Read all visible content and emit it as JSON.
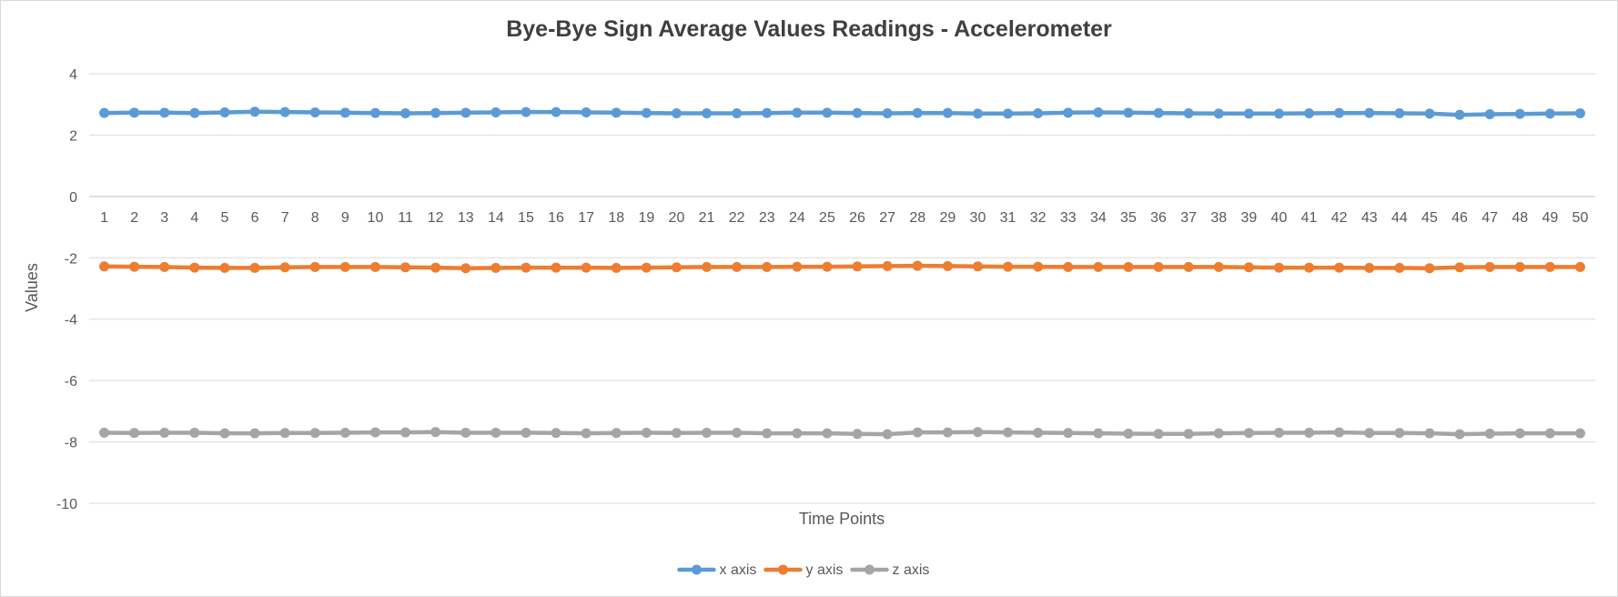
{
  "chart_data": {
    "type": "line",
    "title": "Bye-Bye Sign Average Values Readings - Accelerometer",
    "xlabel": "Time Points",
    "ylabel": "Values",
    "ylim": [
      -10,
      4
    ],
    "yticks": [
      4,
      2,
      0,
      -2,
      -4,
      -6,
      -8,
      -10
    ],
    "grid": true,
    "legend_position": "bottom",
    "categories": [
      "1",
      "2",
      "3",
      "4",
      "5",
      "6",
      "7",
      "8",
      "9",
      "10",
      "11",
      "12",
      "13",
      "14",
      "15",
      "16",
      "17",
      "18",
      "19",
      "20",
      "21",
      "22",
      "23",
      "24",
      "25",
      "26",
      "27",
      "28",
      "29",
      "30",
      "31",
      "32",
      "33",
      "34",
      "35",
      "36",
      "37",
      "38",
      "39",
      "40",
      "41",
      "42",
      "43",
      "44",
      "45",
      "46",
      "47",
      "48",
      "49",
      "50"
    ],
    "series": [
      {
        "name": "x axis",
        "color": "#5b9bd5",
        "values": [
          2.72,
          2.73,
          2.73,
          2.72,
          2.74,
          2.76,
          2.75,
          2.74,
          2.73,
          2.72,
          2.71,
          2.72,
          2.73,
          2.74,
          2.75,
          2.75,
          2.74,
          2.73,
          2.72,
          2.71,
          2.71,
          2.71,
          2.72,
          2.73,
          2.73,
          2.72,
          2.71,
          2.72,
          2.72,
          2.7,
          2.7,
          2.71,
          2.73,
          2.74,
          2.73,
          2.72,
          2.71,
          2.7,
          2.7,
          2.7,
          2.71,
          2.72,
          2.72,
          2.71,
          2.7,
          2.66,
          2.68,
          2.69,
          2.7,
          2.71
        ]
      },
      {
        "name": "y axis",
        "color": "#ed7d31",
        "values": [
          -2.28,
          -2.29,
          -2.3,
          -2.32,
          -2.33,
          -2.33,
          -2.31,
          -2.3,
          -2.3,
          -2.3,
          -2.31,
          -2.32,
          -2.34,
          -2.33,
          -2.32,
          -2.32,
          -2.32,
          -2.33,
          -2.32,
          -2.31,
          -2.3,
          -2.3,
          -2.3,
          -2.29,
          -2.29,
          -2.28,
          -2.27,
          -2.26,
          -2.27,
          -2.28,
          -2.29,
          -2.29,
          -2.3,
          -2.3,
          -2.3,
          -2.3,
          -2.3,
          -2.3,
          -2.31,
          -2.32,
          -2.32,
          -2.32,
          -2.33,
          -2.33,
          -2.34,
          -2.31,
          -2.3,
          -2.3,
          -2.3,
          -2.3
        ]
      },
      {
        "name": "z axis",
        "color": "#a5a5a5",
        "values": [
          -7.7,
          -7.71,
          -7.7,
          -7.7,
          -7.72,
          -7.72,
          -7.71,
          -7.71,
          -7.7,
          -7.69,
          -7.69,
          -7.68,
          -7.7,
          -7.7,
          -7.7,
          -7.71,
          -7.72,
          -7.71,
          -7.7,
          -7.71,
          -7.7,
          -7.7,
          -7.72,
          -7.72,
          -7.72,
          -7.74,
          -7.75,
          -7.69,
          -7.69,
          -7.68,
          -7.69,
          -7.7,
          -7.71,
          -7.72,
          -7.73,
          -7.74,
          -7.74,
          -7.72,
          -7.71,
          -7.7,
          -7.7,
          -7.69,
          -7.71,
          -7.71,
          -7.72,
          -7.75,
          -7.73,
          -7.72,
          -7.72,
          -7.72
        ]
      }
    ]
  }
}
